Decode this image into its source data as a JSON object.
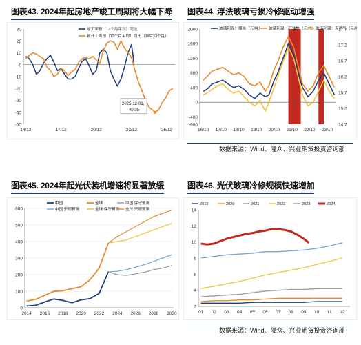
{
  "titles": {
    "c43": "图表43. 2024年起房地产竣工周期将大幅下降",
    "c44": "图表44. 浮法玻璃亏损冷修驱动增强",
    "c45": "图表45. 2024年起光伏装机增速将显著放缓",
    "c46": "图表46. 光伏玻璃冷修规模快速增加"
  },
  "source": "数据来源：Wind、隆众、兴业期货投资咨询部",
  "colors": {
    "navy": "#1f3e7a",
    "orange": "#e88a2e",
    "blue": "#3d6fd0",
    "red": "#c0291f",
    "yellow": "#f0c33c",
    "gray": "#9a9a9a",
    "lightblue": "#6fa6dc"
  },
  "chart_data": [
    {
      "id": "c43",
      "type": "line",
      "legend": [
        "竣工面积（12个月平均）同比",
        "新开工面积（12个月平均）同比（滞后33个月）"
      ],
      "ylim": [
        -50,
        30
      ],
      "yticks": [
        "30",
        "20",
        "10",
        "0",
        "-10",
        "-20",
        "-30",
        "-40",
        "-50"
      ],
      "xticks": [
        "14/12",
        "17/12",
        "20/12",
        "23/12",
        "26/12"
      ],
      "annotation": "2025-12-01, -40.35",
      "series": [
        {
          "name": "竣工面积（12个月平均）同比",
          "color": "navy",
          "x": [
            2014.9,
            2015.2,
            2015.5,
            2015.8,
            2016.1,
            2016.4,
            2016.7,
            2017.0,
            2017.3,
            2017.6,
            2017.9,
            2018.2,
            2018.5,
            2018.8,
            2019.1,
            2019.4,
            2019.7,
            2020.0,
            2020.3,
            2020.6,
            2020.9,
            2021.2,
            2021.5,
            2021.8,
            2022.1,
            2022.4,
            2022.7,
            2023.0,
            2023.3,
            2023.6,
            2023.9,
            2024.1
          ],
          "y": [
            7,
            5,
            0,
            -8,
            -5,
            1,
            5,
            8,
            2,
            -5,
            -3,
            -8,
            -12,
            -12,
            -10,
            -3,
            3,
            5,
            -1,
            -8,
            -5,
            10,
            13,
            10,
            -5,
            -12,
            -18,
            -12,
            -2,
            10,
            17,
            2
          ]
        },
        {
          "name": "新开工面积（12个月平均）同比（滞后33个月）",
          "color": "orange",
          "x": [
            2014.9,
            2015.2,
            2015.5,
            2015.8,
            2016.1,
            2016.4,
            2016.7,
            2017.0,
            2017.3,
            2017.6,
            2017.9,
            2018.2,
            2018.5,
            2018.8,
            2019.1,
            2019.4,
            2019.7,
            2020.0,
            2020.3,
            2020.6,
            2020.9,
            2021.2,
            2021.5,
            2021.8,
            2022.1,
            2022.4,
            2022.7,
            2023.0,
            2023.3,
            2023.6,
            2023.9,
            2024.2,
            2024.5,
            2024.8,
            2025.1,
            2025.4,
            2025.7,
            2025.9,
            2026.2,
            2026.5,
            2026.8,
            2027.1,
            2027.4
          ],
          "y": [
            5,
            8,
            10,
            9,
            7,
            5,
            -2,
            -5,
            -10,
            -8,
            -3,
            -5,
            -9,
            -6,
            -4,
            2,
            5,
            6,
            5,
            7,
            4,
            1,
            12,
            18,
            20,
            19,
            13,
            20,
            14,
            10,
            6,
            -5,
            -15,
            -22,
            -30,
            -36,
            -38,
            -40,
            -38,
            -32,
            -28,
            -22,
            -20
          ]
        }
      ]
    },
    {
      "id": "c44",
      "type": "line",
      "legend": [
        "玻璃利润：煤炭（元/吨）",
        "玻璃利润：石油焦（元/吨）",
        "玻璃利润：天然气（元/吨）"
      ],
      "ylim": [
        -600,
        2000
      ],
      "yticks": [
        "2000",
        "1600",
        "1200",
        "800",
        "400",
        "0",
        "-400",
        "-600"
      ],
      "ylim_right": [
        14.7,
        17.7
      ],
      "yticks_right": [
        "17.7",
        "17.2",
        "16.7",
        "16.2",
        "15.7",
        "15.2",
        "14.7"
      ],
      "xticks": [
        "16/10",
        "17/10",
        "18/10",
        "19/10",
        "20/10",
        "21/10",
        "22/10",
        "23/10"
      ],
      "series": [
        {
          "name": "玻璃利润：煤炭（元/吨）",
          "color": "navy",
          "x": [
            2016.8,
            2017.0,
            2017.3,
            2017.6,
            2017.9,
            2018.2,
            2018.5,
            2018.8,
            2019.1,
            2019.4,
            2019.7,
            2020.0,
            2020.3,
            2020.5,
            2020.8,
            2021.0,
            2021.3,
            2021.6,
            2021.9,
            2022.1,
            2022.4,
            2022.7,
            2023.0,
            2023.3,
            2023.6,
            2023.9,
            2024.2
          ],
          "y": [
            300,
            350,
            500,
            550,
            600,
            500,
            400,
            450,
            350,
            200,
            100,
            250,
            150,
            200,
            600,
            800,
            1200,
            1600,
            1300,
            900,
            400,
            150,
            300,
            600,
            800,
            500,
            200
          ]
        },
        {
          "name": "玻璃利润：石油焦（元/吨）",
          "color": "orange",
          "x": [
            2016.8,
            2017.0,
            2017.3,
            2017.6,
            2017.9,
            2018.2,
            2018.5,
            2018.8,
            2019.1,
            2019.4,
            2019.7,
            2020.0,
            2020.3,
            2020.5,
            2020.8,
            2021.0,
            2021.3,
            2021.6,
            2021.9,
            2022.1,
            2022.4,
            2022.7,
            2023.0,
            2023.3,
            2023.6,
            2023.9,
            2024.2
          ],
          "y": [
            600,
            700,
            850,
            900,
            950,
            850,
            750,
            800,
            700,
            500,
            450,
            550,
            300,
            450,
            900,
            1100,
            1500,
            1800,
            1500,
            1100,
            500,
            300,
            450,
            800,
            1000,
            700,
            400
          ]
        },
        {
          "name": "玻璃利润：天然气（元/吨）",
          "color": "yellow",
          "x": [
            2016.8,
            2017.0,
            2017.3,
            2017.6,
            2017.9,
            2018.2,
            2018.5,
            2018.8,
            2019.1,
            2019.4,
            2019.7,
            2020.0,
            2020.3,
            2020.5,
            2020.8,
            2021.0,
            2021.3,
            2021.6,
            2021.9,
            2022.1,
            2022.4,
            2022.7,
            2023.0,
            2023.3,
            2023.6,
            2023.9,
            2024.2
          ],
          "y": [
            200,
            250,
            350,
            450,
            500,
            350,
            250,
            300,
            150,
            0,
            -100,
            50,
            -250,
            0,
            400,
            700,
            1100,
            1500,
            1200,
            800,
            200,
            -100,
            0,
            300,
            600,
            300,
            100
          ]
        }
      ],
      "highlight_bands": [
        [
          2021.6,
          2022.3
        ],
        [
          2023.3,
          2023.6
        ]
      ]
    },
    {
      "id": "c45",
      "type": "line",
      "legend": [
        "中国",
        "全球",
        "中国 保守预测",
        "中国 乐观预测",
        "全球 保守预测",
        "全球 乐观预测"
      ],
      "ylim": [
        0,
        600
      ],
      "yticks": [
        "600",
        "500",
        "400",
        "300",
        "200",
        "100",
        "0"
      ],
      "xticks": [
        "2014",
        "2016",
        "2018",
        "2020",
        "2022",
        "2024",
        "2026",
        "2028",
        "2030"
      ],
      "series": [
        {
          "name": "中国",
          "color": "navy",
          "x": [
            2014,
            2015,
            2016,
            2017,
            2018,
            2019,
            2020,
            2021,
            2022,
            2023
          ],
          "y": [
            11,
            15,
            35,
            53,
            44,
            30,
            48,
            55,
            87,
            217
          ]
        },
        {
          "name": "全球",
          "color": "orange",
          "x": [
            2014,
            2015,
            2016,
            2017,
            2018,
            2019,
            2020,
            2021,
            2022,
            2023
          ],
          "y": [
            40,
            51,
            75,
            99,
            103,
            115,
            127,
            170,
            240,
            390
          ]
        },
        {
          "name": "中国 保守预测",
          "color": "gray",
          "x": [
            2023,
            2024,
            2025,
            2026,
            2027,
            2028,
            2029,
            2030
          ],
          "y": [
            217,
            200,
            195,
            205,
            215,
            230,
            240,
            255
          ]
        },
        {
          "name": "中国 乐观预测",
          "color": "lightblue",
          "x": [
            2023,
            2024,
            2025,
            2026,
            2027,
            2028,
            2029,
            2030
          ],
          "y": [
            217,
            220,
            230,
            245,
            260,
            280,
            300,
            320
          ]
        },
        {
          "name": "全球 保守预测",
          "color": "yellow",
          "x": [
            2023,
            2024,
            2025,
            2026,
            2027,
            2028,
            2029,
            2030
          ],
          "y": [
            390,
            400,
            410,
            430,
            450,
            470,
            490,
            510
          ]
        },
        {
          "name": "全球 乐观预测",
          "color": "orange",
          "x": [
            2023,
            2024,
            2025,
            2026,
            2027,
            2028,
            2029,
            2030
          ],
          "y": [
            390,
            430,
            460,
            490,
            520,
            550,
            570,
            590
          ]
        }
      ]
    },
    {
      "id": "c46",
      "type": "line",
      "legend": [
        "2019",
        "2020",
        "2021",
        "2022",
        "2023",
        "2024"
      ],
      "ylim": [
        2,
        14
      ],
      "yticks": [
        "14",
        "12",
        "10",
        "8",
        "6",
        "4",
        "2"
      ],
      "xticks": [
        "01",
        "02",
        "03",
        "04",
        "05",
        "06",
        "07",
        "08",
        "09",
        "10",
        "11",
        "12"
      ],
      "series": [
        {
          "name": "2019",
          "color": "navy",
          "x": [
            1,
            2,
            3,
            4,
            5,
            6,
            7,
            8,
            9,
            10,
            11,
            12
          ],
          "y": [
            2.4,
            2.4,
            2.4,
            2.4,
            2.5,
            2.5,
            2.5,
            2.5,
            2.5,
            2.6,
            2.6,
            2.6
          ]
        },
        {
          "name": "2020",
          "color": "orange",
          "x": [
            1,
            2,
            3,
            4,
            5,
            6,
            7,
            8,
            9,
            10,
            11,
            12
          ],
          "y": [
            2.6,
            2.7,
            2.7,
            2.8,
            2.8,
            2.9,
            3.0,
            3.0,
            3.0,
            3.0,
            3.0,
            3.0
          ]
        },
        {
          "name": "2021",
          "color": "gray",
          "x": [
            1,
            2,
            3,
            4,
            5,
            6,
            7,
            8,
            9,
            10,
            11,
            12
          ],
          "y": [
            3.2,
            3.3,
            3.4,
            3.5,
            3.7,
            3.9,
            4.0,
            4.1,
            4.1,
            4.2,
            4.2,
            4.2
          ]
        },
        {
          "name": "2022",
          "color": "yellow",
          "x": [
            1,
            2,
            3,
            4,
            5,
            6,
            7,
            8,
            9,
            10,
            11,
            12
          ],
          "y": [
            4.2,
            4.5,
            4.8,
            5.1,
            5.5,
            5.9,
            6.2,
            6.5,
            6.8,
            7.2,
            7.6,
            8.0
          ]
        },
        {
          "name": "2023",
          "color": "lightblue",
          "x": [
            1,
            2,
            3,
            4,
            5,
            6,
            7,
            8,
            9,
            10,
            11,
            12
          ],
          "y": [
            8.0,
            8.2,
            8.4,
            8.5,
            8.6,
            8.8,
            8.8,
            8.9,
            9.0,
            9.2,
            9.5,
            9.9
          ]
        },
        {
          "name": "2024",
          "color": "red",
          "x": [
            1,
            1.5,
            2,
            2.5,
            3,
            3.5,
            4,
            4.5,
            5,
            5.5,
            6,
            6.5,
            7,
            7.5,
            8,
            8.5,
            9,
            9.4
          ],
          "y": [
            9.8,
            9.7,
            9.8,
            10.1,
            10.4,
            10.6,
            10.8,
            11.0,
            11.1,
            11.3,
            11.4,
            11.6,
            11.6,
            11.5,
            11.3,
            10.9,
            10.4,
            9.9
          ]
        }
      ]
    }
  ]
}
